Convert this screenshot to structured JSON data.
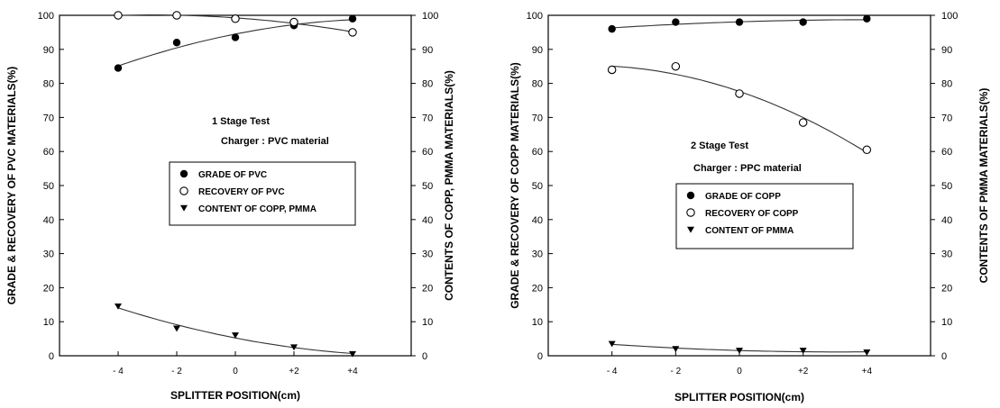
{
  "chart_data": [
    {
      "type": "line",
      "x_ticks": [
        "- 4",
        "- 2",
        "0",
        "+2",
        "+4"
      ],
      "x": [
        -4,
        -2,
        0,
        2,
        4
      ],
      "xlim": [
        -6,
        6
      ],
      "xlabel": "SPLITTER POSITION(cm)",
      "ylabel": "GRADE & RECOVERY OF PVC MATERIALS(%)",
      "y2label": "CONTENTS OF COPP, PMMA MATERIALS(%)",
      "ylim": [
        0,
        100
      ],
      "y2lim": [
        0,
        100
      ],
      "y_ticks": [
        "0",
        "10",
        "20",
        "30",
        "40",
        "50",
        "60",
        "70",
        "80",
        "90",
        "100"
      ],
      "y2_ticks": [
        "0",
        "10",
        "20",
        "30",
        "40",
        "50",
        "60",
        "70",
        "80",
        "90",
        "100"
      ],
      "annotations": [
        "1 Stage Test",
        "Charger : PVC material"
      ],
      "legend": {
        "position": "center-right"
      },
      "series": [
        {
          "name": "GRADE OF PVC",
          "marker": "filled-circle",
          "values": [
            84.5,
            92,
            93.5,
            97,
            99
          ]
        },
        {
          "name": "RECOVERY OF PVC",
          "marker": "open-circle",
          "values": [
            100,
            100,
            99,
            98,
            95
          ]
        },
        {
          "name": "CONTENT OF COPP, PMMA",
          "marker": "filled-triangle-down",
          "axis": "right",
          "values": [
            14.5,
            8,
            6,
            2.5,
            0.5
          ]
        }
      ]
    },
    {
      "type": "line",
      "x_ticks": [
        "- 4",
        "- 2",
        "0",
        "+2",
        "+4"
      ],
      "x": [
        -4,
        -2,
        0,
        2,
        4
      ],
      "xlim": [
        -6,
        6
      ],
      "xlabel": "SPLITTER POSITION(cm)",
      "ylabel": "GRADE & RECOVERY OF COPP MATERIALS(%)",
      "y2label": "CONTENTS OF PMMA MATERIALS(%)",
      "ylim": [
        0,
        100
      ],
      "y2lim": [
        0,
        100
      ],
      "y_ticks": [
        "0",
        "10",
        "20",
        "30",
        "40",
        "50",
        "60",
        "70",
        "80",
        "90",
        "100"
      ],
      "y2_ticks": [
        "0",
        "10",
        "20",
        "30",
        "40",
        "50",
        "60",
        "70",
        "80",
        "90",
        "100"
      ],
      "annotations": [
        "2 Stage Test",
        "Charger : PPC material"
      ],
      "legend": {
        "position": "center-right"
      },
      "series": [
        {
          "name": "GRADE OF COPP",
          "marker": "filled-circle",
          "values": [
            96,
            98,
            98,
            98,
            99
          ]
        },
        {
          "name": "RECOVERY OF COPP",
          "marker": "open-circle",
          "values": [
            84,
            85,
            77,
            68.5,
            60.5
          ]
        },
        {
          "name": "CONTENT OF PMMA",
          "marker": "filled-triangle-down",
          "axis": "right",
          "values": [
            3.5,
            2,
            1.5,
            1.5,
            1
          ]
        }
      ]
    }
  ]
}
